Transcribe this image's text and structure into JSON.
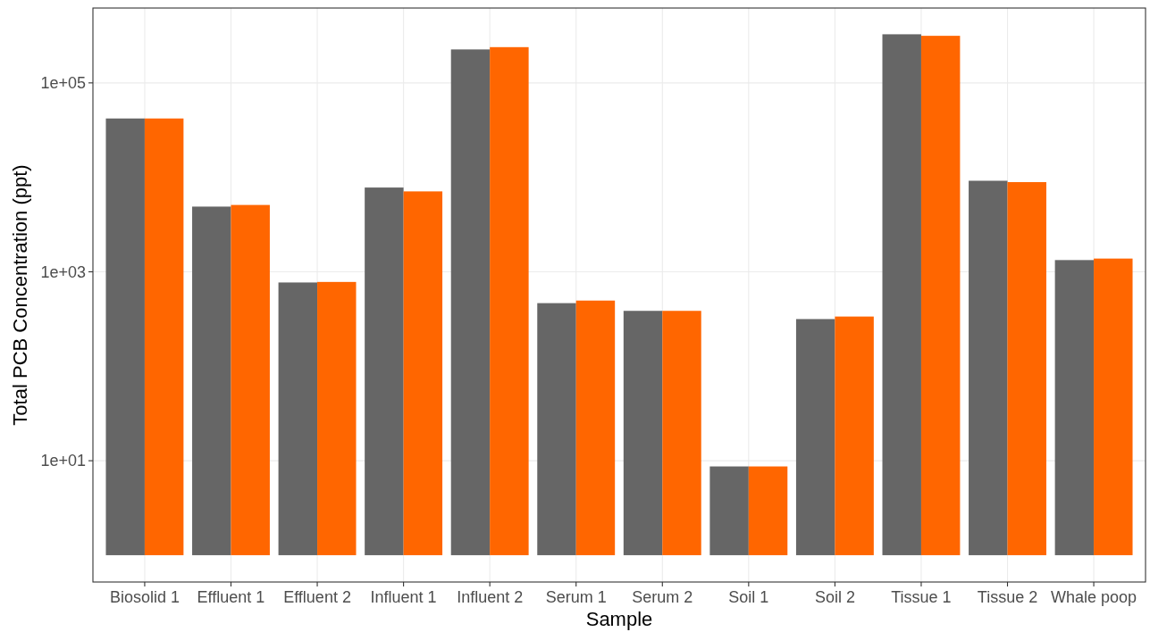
{
  "chart_data": {
    "type": "bar",
    "xlabel": "Sample",
    "ylabel": "Total PCB Concentration (ppt)",
    "categories": [
      "Biosolid 1",
      "Effluent 1",
      "Effluent 2",
      "Influent 1",
      "Influent 2",
      "Serum 1",
      "Serum 2",
      "Soil 1",
      "Soil 2",
      "Tissue 1",
      "Tissue 2",
      "Whale poop"
    ],
    "series": [
      {
        "color": "#666666",
        "values": [
          42000,
          4900,
          770,
          7800,
          226000,
          465,
          385,
          7.7,
          315,
          327000,
          9200,
          1330
        ],
        "base": [
          1,
          1,
          1,
          1,
          1,
          1,
          1,
          1,
          1,
          1,
          1,
          1
        ]
      },
      {
        "color": "#ff6600",
        "values": [
          42000,
          5100,
          780,
          7100,
          239000,
          495,
          385,
          7.7,
          335,
          315000,
          8900,
          1380
        ],
        "base": [
          1,
          1,
          1,
          1,
          1,
          1,
          1,
          1,
          1,
          1,
          1,
          1
        ]
      }
    ],
    "log": true,
    "ylim": [
      0.52,
      620000
    ],
    "yticks": [
      {
        "value": 10,
        "label": "1e+01"
      },
      {
        "value": 1000,
        "label": "1e+03"
      },
      {
        "value": 100000,
        "label": "1e+05"
      }
    ],
    "grid": true
  }
}
